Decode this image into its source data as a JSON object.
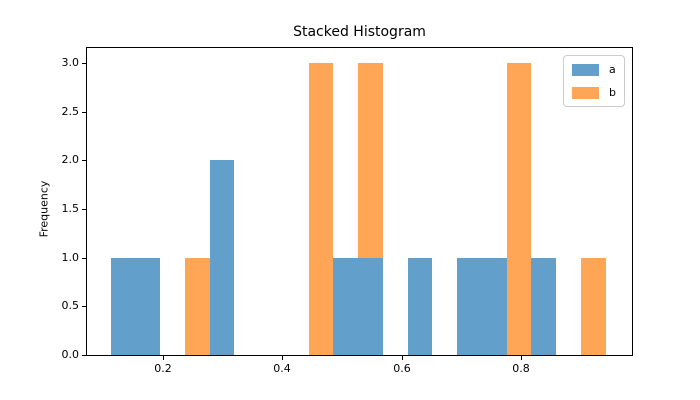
{
  "window": {
    "background": "#ffffff"
  },
  "chart": {
    "title": "Stacked Histogram",
    "ylabel": "Frequency",
    "xlabel": ""
  },
  "chart_data": {
    "type": "bar",
    "subtype": "stacked-histogram",
    "title": "Stacked Histogram",
    "xlabel": "",
    "ylabel": "Frequency",
    "stacked": true,
    "grid": false,
    "legend_position": "upper right",
    "bin_edges": [
      0.112,
      0.1535,
      0.195,
      0.2365,
      0.278,
      0.3195,
      0.361,
      0.4025,
      0.444,
      0.4855,
      0.527,
      0.5685,
      0.61,
      0.6515,
      0.693,
      0.7345,
      0.776,
      0.8175,
      0.859,
      0.9005,
      0.942
    ],
    "series": [
      {
        "name": "a",
        "color": "#62a0cb",
        "values": [
          1,
          1,
          0,
          0,
          2,
          0,
          0,
          0,
          0,
          1,
          1,
          0,
          1,
          0,
          1,
          1,
          0,
          1,
          0,
          0
        ]
      },
      {
        "name": "b",
        "color": "#ffa556",
        "values": [
          0,
          0,
          0,
          1,
          0,
          0,
          0,
          0,
          3,
          0,
          2,
          0,
          0,
          0,
          0,
          0,
          3,
          0,
          0,
          1
        ]
      }
    ],
    "xlim": [
      0.0726,
      0.986
    ],
    "ylim": [
      0,
      3.154
    ],
    "xticks": [
      0.2,
      0.4,
      0.6,
      0.8
    ],
    "xtick_labels": [
      "0.2",
      "0.4",
      "0.6",
      "0.8"
    ],
    "yticks": [
      0.0,
      0.5,
      1.0,
      1.5,
      2.0,
      2.5,
      3.0
    ],
    "ytick_labels": [
      "0.0",
      "0.5",
      "1.0",
      "1.5",
      "2.0",
      "2.5",
      "3.0"
    ],
    "axis_color": "#000000",
    "text_color": "#000000"
  }
}
